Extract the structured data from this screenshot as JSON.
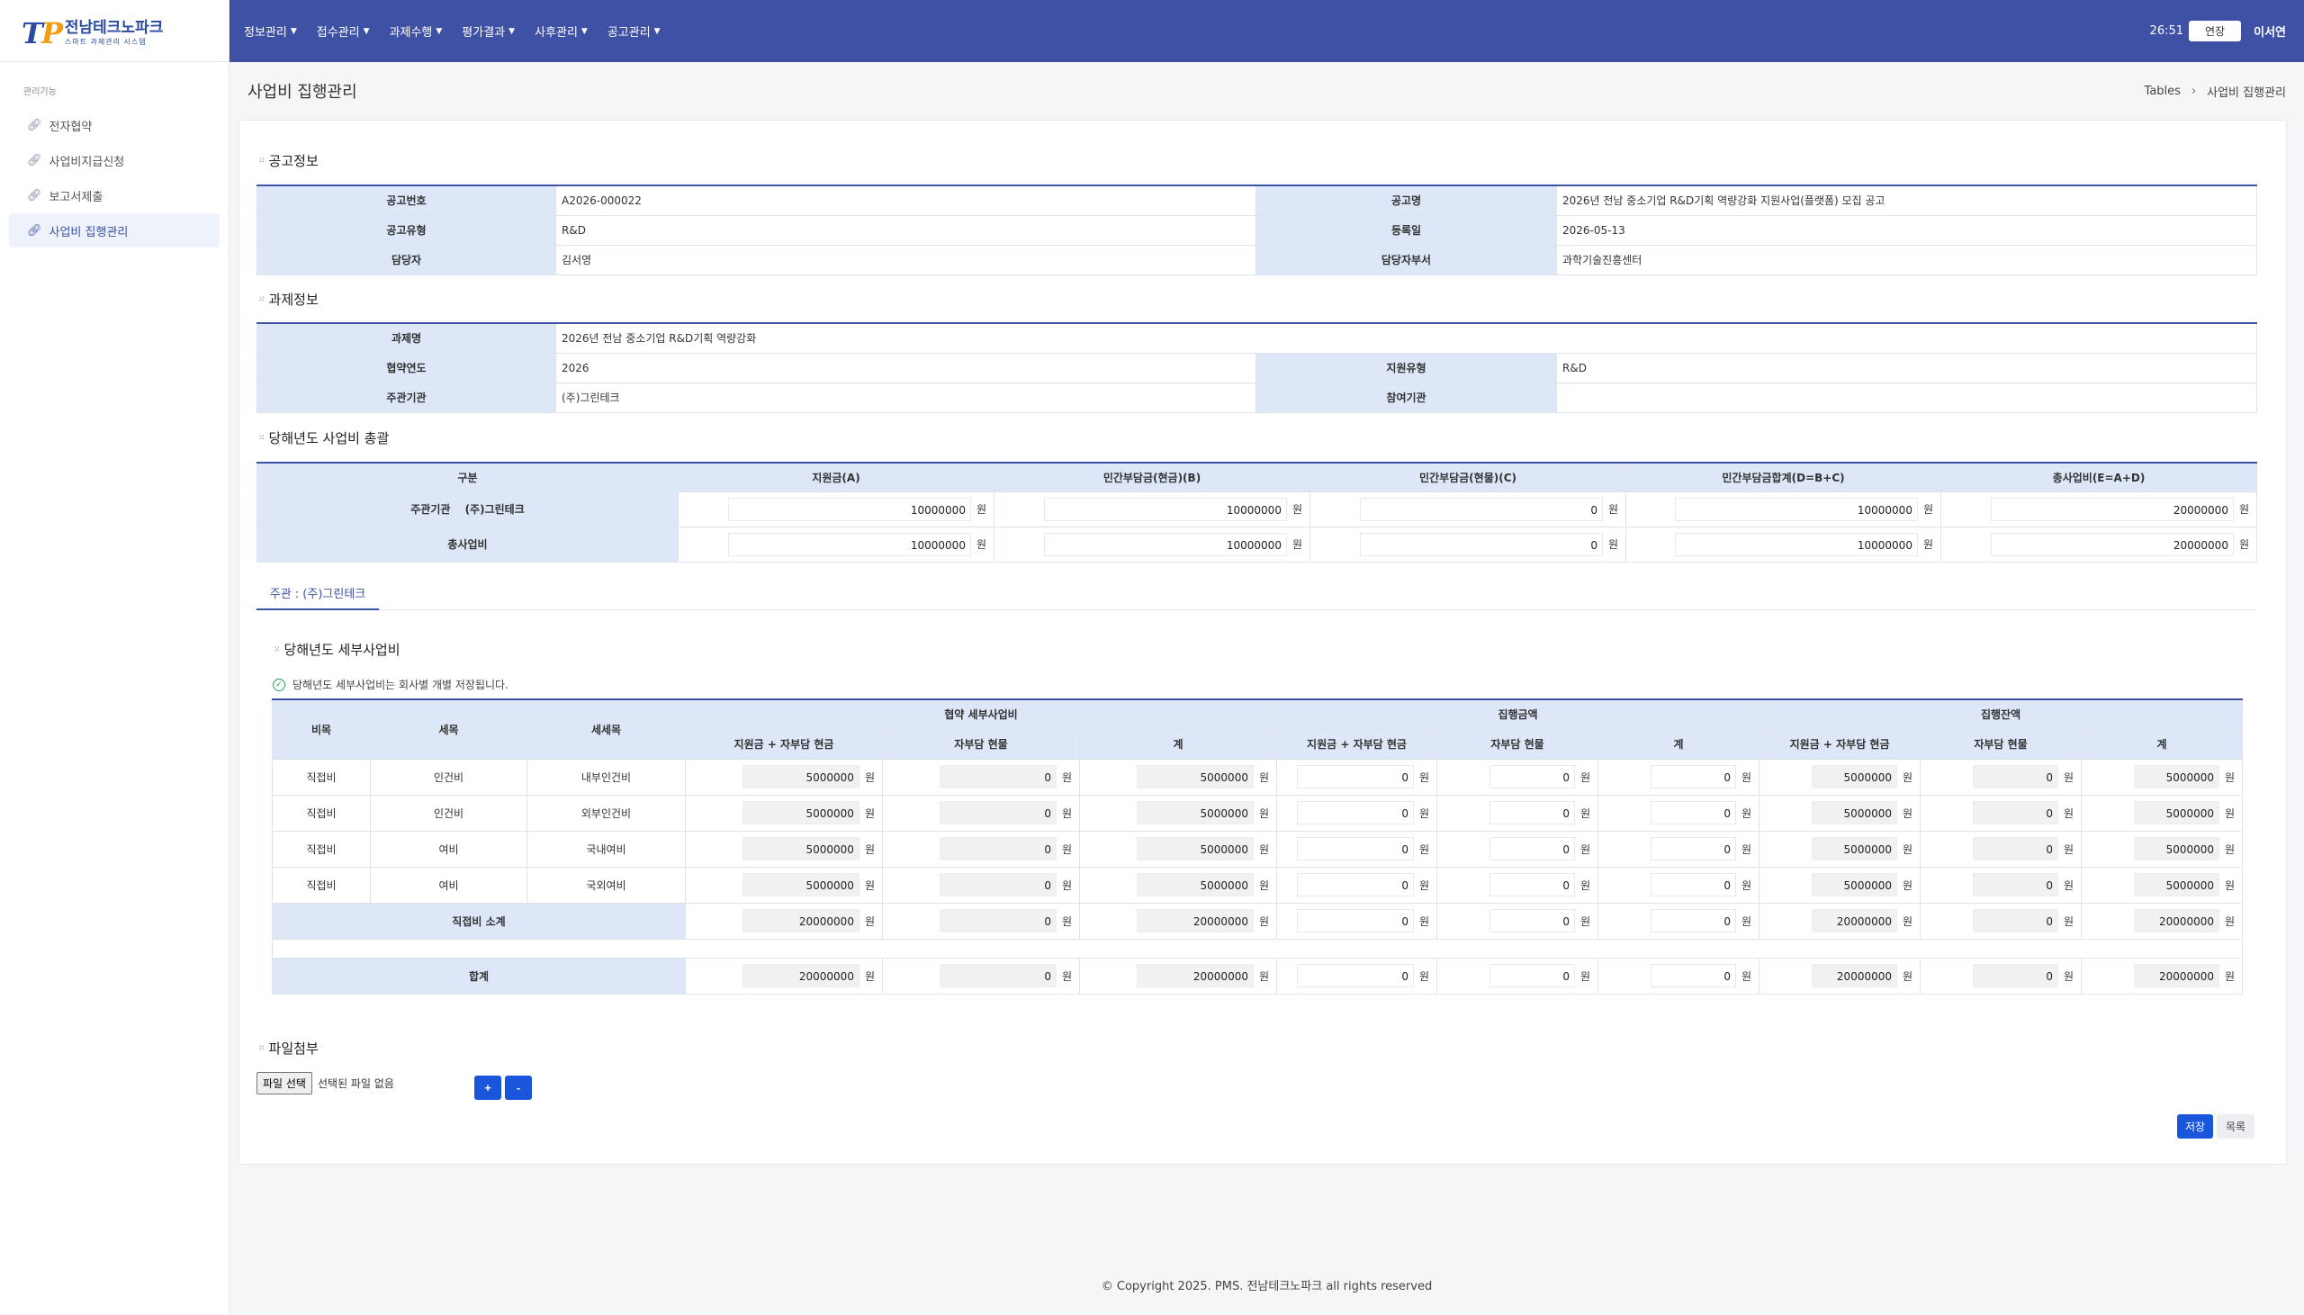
{
  "logo": {
    "mark_a": "T",
    "mark_b": "P",
    "title": "전남테크노파크",
    "subtitle": "스마트 과제관리 시스템"
  },
  "nav": [
    {
      "label": "정보관리"
    },
    {
      "label": "접수관리"
    },
    {
      "label": "과제수행"
    },
    {
      "label": "평가결과"
    },
    {
      "label": "사후관리"
    },
    {
      "label": "공고관리"
    }
  ],
  "topright": {
    "timer": "26:51",
    "extend": "연장",
    "user": "이서연"
  },
  "sidebar": {
    "title": "관리기능",
    "items": [
      {
        "label": "전자협약"
      },
      {
        "label": "사업비지급신청"
      },
      {
        "label": "보고서제출"
      },
      {
        "label": "사업비 집행관리"
      }
    ]
  },
  "page": {
    "title": "사업비 집행관리",
    "crumb_root": "Tables",
    "crumb_current": "사업비 집행관리"
  },
  "notice": {
    "heading": "공고정보",
    "no_label": "공고번호",
    "no": "A2026-000022",
    "name_label": "공고명",
    "name": "2026년 전남 중소기업 R&D기획 역량강화 지원사업(플랫폼) 모집 공고",
    "type_label": "공고유형",
    "type": "R&D",
    "date_label": "등록일",
    "date": "2026-05-13",
    "manager_label": "담당자",
    "manager": "김서영",
    "dept_label": "담당자부서",
    "dept": "과학기술진흥센터"
  },
  "project": {
    "heading": "과제정보",
    "name_label": "과제명",
    "name": "2026년 전남 중소기업 R&D기획 역량강화",
    "year_label": "협약연도",
    "year": "2026",
    "support_label": "지원유형",
    "support": "R&D",
    "lead_label": "주관기관",
    "lead": "(주)그린테크",
    "partner_label": "참여기관",
    "partner": ""
  },
  "summary": {
    "heading": "당해년도 사업비 총괄",
    "headers": [
      "구분",
      "지원금(A)",
      "민간부담금(현금)(B)",
      "민간부담금(현물)(C)",
      "민간부담금합계(D=B+C)",
      "총사업비(E=A+D)"
    ],
    "rows": [
      {
        "label": "주관기관 　(주)그린테크",
        "values": [
          "10000000",
          "10000000",
          "0",
          "10000000",
          "20000000"
        ]
      },
      {
        "label": "총사업비",
        "values": [
          "10000000",
          "10000000",
          "0",
          "10000000",
          "20000000"
        ]
      }
    ],
    "won": "원"
  },
  "tab": {
    "label": "주관 : (주)그린테크"
  },
  "detail": {
    "heading": "당해년도 세부사업비",
    "note": "당해년도 세부사업비는 회사별 개별 저장됩니다.",
    "head1": [
      "비목",
      "세목",
      "세세목",
      "협약 세부사업비",
      "집행금액",
      "집행잔액"
    ],
    "head2": [
      "지원금 + 자부담 현금",
      "자부담 현물",
      "계",
      "지원금 + 자부담 현금",
      "자부담 현물",
      "계",
      "지원금 + 자부담 현금",
      "자부담 현물",
      "계"
    ],
    "rows": [
      {
        "c1": "직접비",
        "c2": "인건비",
        "c3": "내부인건비",
        "v": [
          "5000000",
          "0",
          "5000000",
          "0",
          "0",
          "0",
          "5000000",
          "0",
          "5000000"
        ]
      },
      {
        "c1": "직접비",
        "c2": "인건비",
        "c3": "외부인건비",
        "v": [
          "5000000",
          "0",
          "5000000",
          "0",
          "0",
          "0",
          "5000000",
          "0",
          "5000000"
        ]
      },
      {
        "c1": "직접비",
        "c2": "여비",
        "c3": "국내여비",
        "v": [
          "5000000",
          "0",
          "5000000",
          "0",
          "0",
          "0",
          "5000000",
          "0",
          "5000000"
        ]
      },
      {
        "c1": "직접비",
        "c2": "여비",
        "c3": "국외여비",
        "v": [
          "5000000",
          "0",
          "5000000",
          "0",
          "0",
          "0",
          "5000000",
          "0",
          "5000000"
        ]
      }
    ],
    "subtotal": {
      "label": "직접비 소계",
      "v": [
        "20000000",
        "0",
        "20000000",
        "0",
        "0",
        "0",
        "20000000",
        "0",
        "20000000"
      ]
    },
    "total": {
      "label": "합계",
      "v": [
        "20000000",
        "0",
        "20000000",
        "0",
        "0",
        "0",
        "20000000",
        "0",
        "20000000"
      ]
    }
  },
  "attach": {
    "heading": "파일첨부",
    "choose": "파일 선택",
    "none": "선택된 파일 없음",
    "plus": "+",
    "minus": "-"
  },
  "actions": {
    "save": "저장",
    "list": "목록"
  },
  "footer": "© Copyright 2025. PMS. 전남테크노파크 all rights reserved"
}
